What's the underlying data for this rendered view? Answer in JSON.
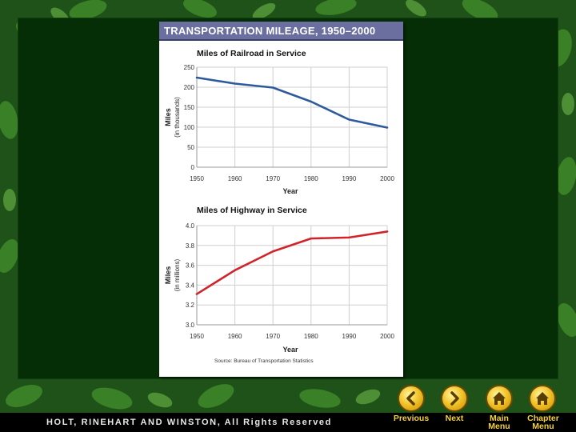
{
  "panel": {
    "title": "TRANSPORTATION MILEAGE, 1950–2000"
  },
  "chart_data": [
    {
      "type": "line",
      "title": "Miles of Railroad in Service",
      "xlabel": "Year",
      "ylabel": "Miles",
      "ylabel_sub": "(in thousands)",
      "x": [
        1950,
        1960,
        1970,
        1980,
        1990,
        2000
      ],
      "x_ticks": [
        "1950",
        "1960",
        "1970",
        "1980",
        "1990",
        "2000"
      ],
      "y_ticks": [
        "0",
        "50",
        "100",
        "150",
        "200",
        "250"
      ],
      "ylim": [
        0,
        250
      ],
      "series": [
        {
          "values": [
            224,
            209,
            199,
            164,
            119,
            99
          ],
          "color": "#2e5a9c"
        }
      ],
      "grid": true
    },
    {
      "type": "line",
      "title": "Miles of Highway in Service",
      "xlabel": "Year",
      "ylabel": "Miles",
      "ylabel_sub": "(in millions)",
      "x": [
        1950,
        1960,
        1970,
        1980,
        1990,
        2000
      ],
      "x_ticks": [
        "1950",
        "1960",
        "1970",
        "1980",
        "1990",
        "2000"
      ],
      "y_ticks": [
        "3.0",
        "3.2",
        "3.4",
        "3.6",
        "3.8",
        "4.0"
      ],
      "ylim": [
        3.0,
        4.0
      ],
      "series": [
        {
          "values": [
            3.31,
            3.55,
            3.74,
            3.87,
            3.88,
            3.94
          ],
          "color": "#d1232a"
        }
      ],
      "grid": true,
      "source": "Source: Bureau of Transportation Statistics"
    }
  ],
  "footer": {
    "text": "HOLT, RINEHART AND WINSTON, All Rights Reserved"
  },
  "nav": [
    {
      "label": "Previous",
      "icon": "chevron-left"
    },
    {
      "label": "Next",
      "icon": "chevron-right"
    },
    {
      "label": "Main\nMenu",
      "icon": "home"
    },
    {
      "label": "Chapter\nMenu",
      "icon": "home"
    }
  ],
  "colors": {
    "stage": "#062e06",
    "panel_header": "#6a6fa0",
    "nav_button": "#f2c52c"
  }
}
